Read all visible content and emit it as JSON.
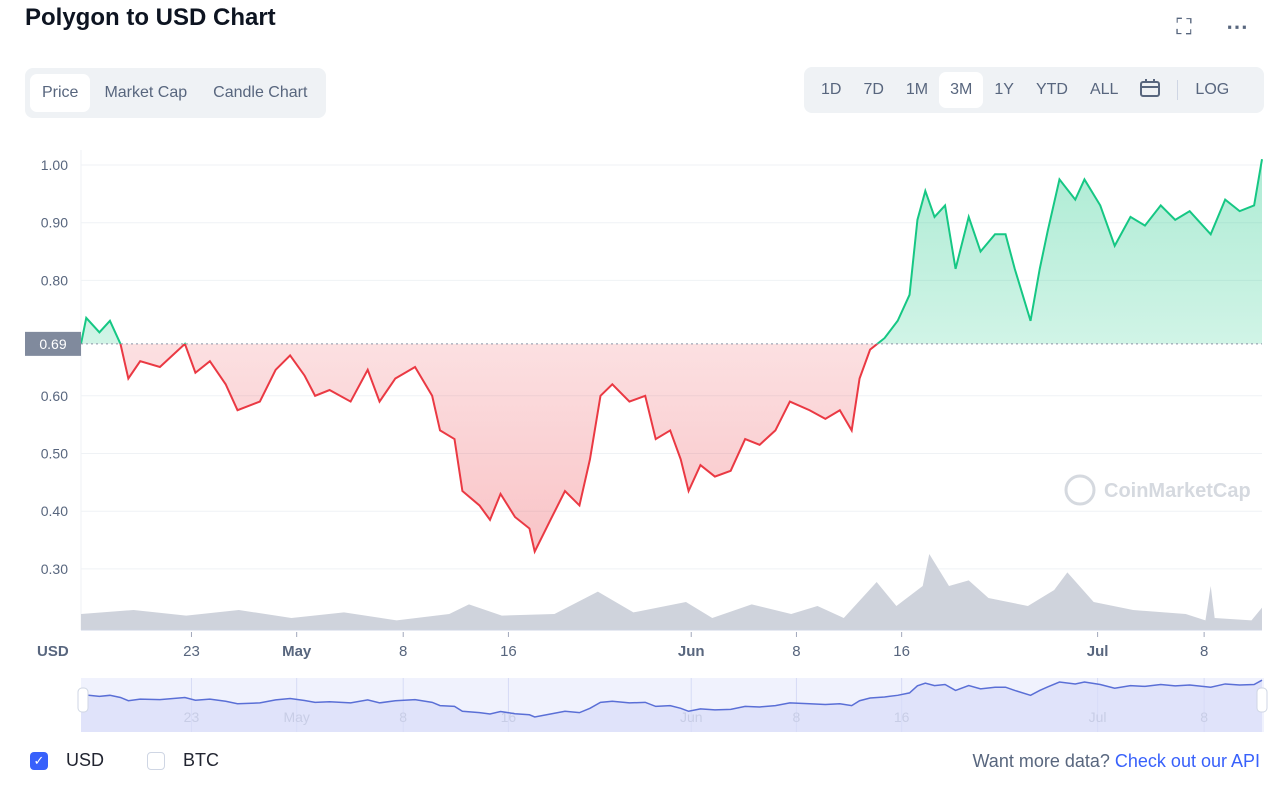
{
  "header": {
    "title": "Polygon to USD Chart",
    "fullscreen_icon": "expand-icon",
    "more_icon": "more-icon"
  },
  "tabs": [
    {
      "label": "Price",
      "active": true
    },
    {
      "label": "Market Cap"
    },
    {
      "label": "Candle Chart"
    }
  ],
  "ranges": [
    {
      "label": "1D"
    },
    {
      "label": "7D"
    },
    {
      "label": "1M"
    },
    {
      "label": "3M",
      "active": true
    },
    {
      "label": "1Y"
    },
    {
      "label": "YTD"
    },
    {
      "label": "ALL"
    }
  ],
  "log_label": "LOG",
  "watermark": "CoinMarketCap",
  "legend": {
    "usd": "USD",
    "btc": "BTC",
    "usd_checked": true,
    "btc_checked": false
  },
  "api": {
    "text": "Want more data?",
    "link": "Check out our API"
  },
  "colors": {
    "up": "#16c784",
    "down": "#ea3943",
    "nav": "#5a6fd6",
    "navfill": "#e6e9fb"
  },
  "chart_data": {
    "type": "line",
    "title": "Polygon to USD Chart",
    "ylabel": "USD",
    "ylim": [
      0.195,
      1.01
    ],
    "xlim": [
      0,
      89.8
    ],
    "x_unit": "days since Apr 15",
    "baseline": {
      "value": 0.69,
      "label": "0.69"
    },
    "yticks": [
      {
        "v": 1.0,
        "l": "1.00"
      },
      {
        "v": 0.9,
        "l": "0.90"
      },
      {
        "v": 0.8,
        "l": "0.80"
      },
      {
        "v": 0.6,
        "l": "0.60"
      },
      {
        "v": 0.5,
        "l": "0.50"
      },
      {
        "v": 0.4,
        "l": "0.40"
      },
      {
        "v": 0.3,
        "l": "0.30"
      }
    ],
    "xticks": [
      {
        "d": 8.4,
        "l": "23",
        "b": false
      },
      {
        "d": 16.4,
        "l": "May",
        "b": true
      },
      {
        "d": 24.5,
        "l": "8",
        "b": false
      },
      {
        "d": 32.5,
        "l": "16",
        "b": false
      },
      {
        "d": 46.4,
        "l": "Jun",
        "b": true
      },
      {
        "d": 54.4,
        "l": "8",
        "b": false
      },
      {
        "d": 62.4,
        "l": "16",
        "b": false
      },
      {
        "d": 77.3,
        "l": "Jul",
        "b": true
      },
      {
        "d": 85.4,
        "l": "8",
        "b": false
      }
    ],
    "price": [
      [
        0,
        0.69
      ],
      [
        0.4,
        0.735
      ],
      [
        1.4,
        0.71
      ],
      [
        2.2,
        0.73
      ],
      [
        3.0,
        0.69
      ],
      [
        3.6,
        0.63
      ],
      [
        4.5,
        0.66
      ],
      [
        6.0,
        0.65
      ],
      [
        7.9,
        0.69
      ],
      [
        8.7,
        0.64
      ],
      [
        9.8,
        0.66
      ],
      [
        11.0,
        0.62
      ],
      [
        11.9,
        0.575
      ],
      [
        13.6,
        0.59
      ],
      [
        14.8,
        0.645
      ],
      [
        15.9,
        0.67
      ],
      [
        17.0,
        0.635
      ],
      [
        17.8,
        0.6
      ],
      [
        18.9,
        0.61
      ],
      [
        20.5,
        0.59
      ],
      [
        21.8,
        0.645
      ],
      [
        22.7,
        0.59
      ],
      [
        23.9,
        0.63
      ],
      [
        25.4,
        0.65
      ],
      [
        26.7,
        0.6
      ],
      [
        27.3,
        0.54
      ],
      [
        28.4,
        0.525
      ],
      [
        29.0,
        0.435
      ],
      [
        30.3,
        0.41
      ],
      [
        31.1,
        0.385
      ],
      [
        31.9,
        0.43
      ],
      [
        33.0,
        0.39
      ],
      [
        34.1,
        0.37
      ],
      [
        34.5,
        0.33
      ],
      [
        35.7,
        0.385
      ],
      [
        36.8,
        0.435
      ],
      [
        37.9,
        0.41
      ],
      [
        38.7,
        0.49
      ],
      [
        39.5,
        0.6
      ],
      [
        40.4,
        0.62
      ],
      [
        41.7,
        0.59
      ],
      [
        42.9,
        0.6
      ],
      [
        43.7,
        0.525
      ],
      [
        44.8,
        0.54
      ],
      [
        45.6,
        0.49
      ],
      [
        46.2,
        0.435
      ],
      [
        47.1,
        0.48
      ],
      [
        48.2,
        0.46
      ],
      [
        49.4,
        0.47
      ],
      [
        50.5,
        0.525
      ],
      [
        51.6,
        0.515
      ],
      [
        52.8,
        0.54
      ],
      [
        53.9,
        0.59
      ],
      [
        55.4,
        0.575
      ],
      [
        56.6,
        0.56
      ],
      [
        57.7,
        0.575
      ],
      [
        58.6,
        0.54
      ],
      [
        59.2,
        0.63
      ],
      [
        60.0,
        0.68
      ],
      [
        61.1,
        0.7
      ],
      [
        62.1,
        0.73
      ],
      [
        63.0,
        0.775
      ],
      [
        63.6,
        0.905
      ],
      [
        64.2,
        0.955
      ],
      [
        64.9,
        0.91
      ],
      [
        65.7,
        0.93
      ],
      [
        66.5,
        0.82
      ],
      [
        67.5,
        0.91
      ],
      [
        68.4,
        0.85
      ],
      [
        69.5,
        0.88
      ],
      [
        70.3,
        0.88
      ],
      [
        71.0,
        0.82
      ],
      [
        72.2,
        0.73
      ],
      [
        72.9,
        0.82
      ],
      [
        73.5,
        0.885
      ],
      [
        74.4,
        0.975
      ],
      [
        75.6,
        0.94
      ],
      [
        76.3,
        0.975
      ],
      [
        77.5,
        0.93
      ],
      [
        78.6,
        0.86
      ],
      [
        79.8,
        0.91
      ],
      [
        80.9,
        0.895
      ],
      [
        82.1,
        0.93
      ],
      [
        83.2,
        0.905
      ],
      [
        84.3,
        0.92
      ],
      [
        85.9,
        0.88
      ],
      [
        87.0,
        0.94
      ],
      [
        88.1,
        0.92
      ],
      [
        89.2,
        0.93
      ],
      [
        89.8,
        1.01
      ]
    ],
    "volume_relative": [
      [
        0,
        0.2
      ],
      [
        4,
        0.25
      ],
      [
        8,
        0.18
      ],
      [
        12,
        0.25
      ],
      [
        16,
        0.15
      ],
      [
        20,
        0.22
      ],
      [
        24,
        0.12
      ],
      [
        28,
        0.2
      ],
      [
        29.5,
        0.32
      ],
      [
        32,
        0.18
      ],
      [
        36,
        0.2
      ],
      [
        39.3,
        0.48
      ],
      [
        42,
        0.22
      ],
      [
        46,
        0.35
      ],
      [
        48,
        0.15
      ],
      [
        51,
        0.32
      ],
      [
        54,
        0.2
      ],
      [
        56,
        0.3
      ],
      [
        58,
        0.15
      ],
      [
        60.5,
        0.6
      ],
      [
        62,
        0.3
      ],
      [
        64,
        0.55
      ],
      [
        64.5,
        0.95
      ],
      [
        66,
        0.55
      ],
      [
        67.5,
        0.62
      ],
      [
        69,
        0.4
      ],
      [
        72,
        0.3
      ],
      [
        74,
        0.5
      ],
      [
        75,
        0.72
      ],
      [
        77,
        0.35
      ],
      [
        80,
        0.25
      ],
      [
        84,
        0.2
      ],
      [
        85.5,
        0.12
      ],
      [
        85.9,
        0.55
      ],
      [
        86.2,
        0.15
      ],
      [
        89,
        0.12
      ],
      [
        89.8,
        0.28
      ]
    ]
  }
}
